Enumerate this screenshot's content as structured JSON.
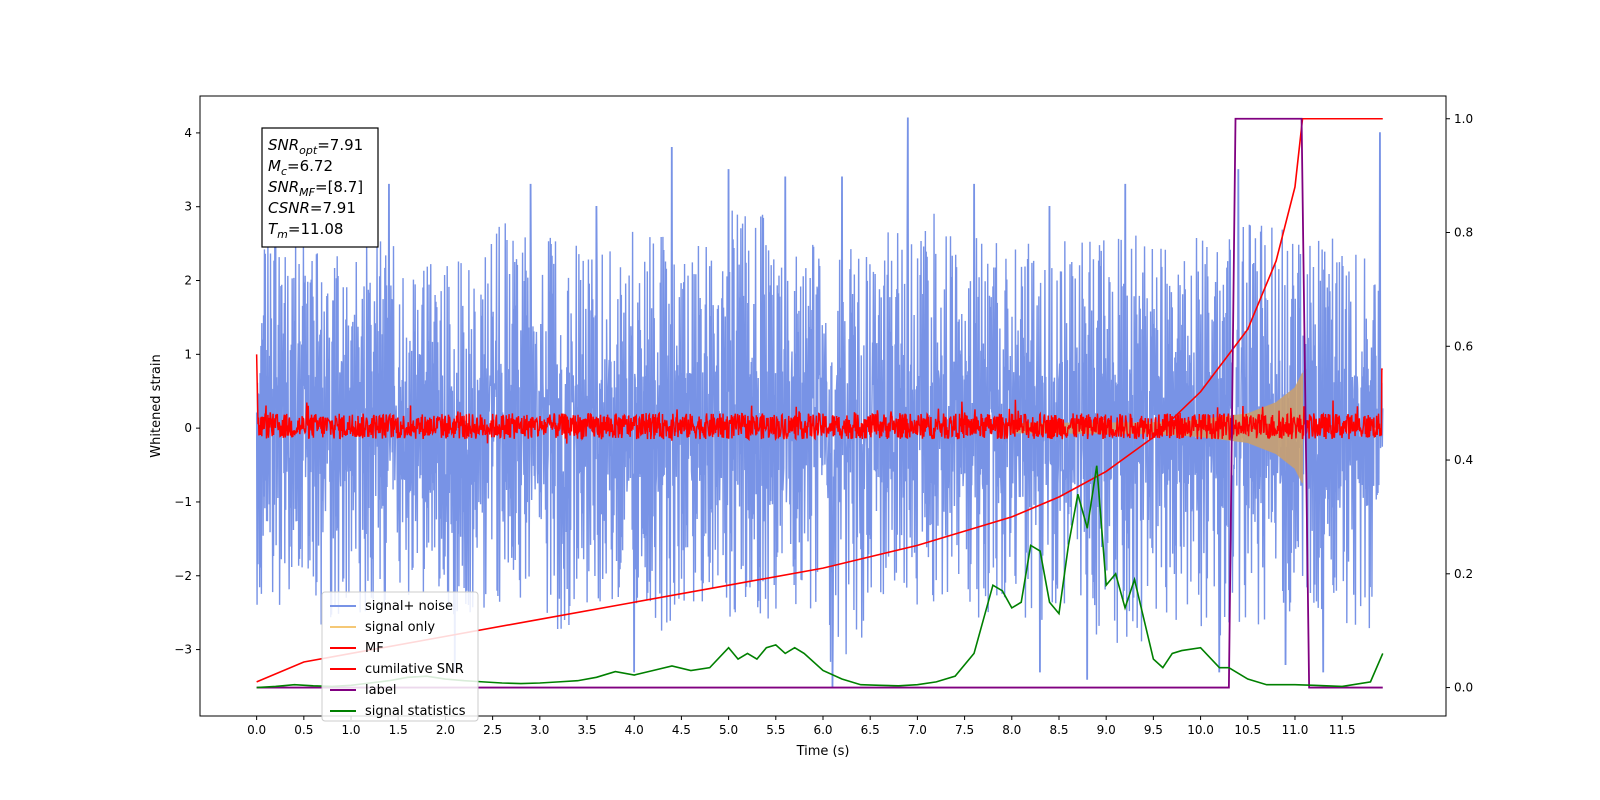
{
  "chart_data": {
    "type": "line",
    "xlabel": "Time (s)",
    "ylabel": "Whitened strain",
    "xlim": [
      -0.6,
      12.6
    ],
    "ylim": [
      -3.9,
      4.5
    ],
    "y2lim": [
      -0.05,
      1.04
    ],
    "x_ticks": [
      "0.0",
      "0.5",
      "1.0",
      "1.5",
      "2.0",
      "2.5",
      "3.0",
      "3.5",
      "4.0",
      "4.5",
      "5.0",
      "5.5",
      "6.0",
      "6.5",
      "7.0",
      "7.5",
      "8.0",
      "8.5",
      "9.0",
      "9.5",
      "10.0",
      "10.5",
      "11.0",
      "11.5"
    ],
    "y_ticks": [
      "−3",
      "−2",
      "−1",
      "0",
      "1",
      "2",
      "3",
      "4"
    ],
    "y2_ticks": [
      "0.0",
      "0.2",
      "0.4",
      "0.6",
      "0.8",
      "1.0"
    ],
    "legend_placement": "lower-left",
    "annotation": [
      {
        "base": "SNR",
        "sub": "opt",
        "value": "=7.91"
      },
      {
        "base": "M",
        "sub": "c",
        "value": "=6.72"
      },
      {
        "base": "SNR",
        "sub": "MF",
        "value": "=[8.7]"
      },
      {
        "base": "CSNR",
        "sub": "",
        "value": "=7.91"
      },
      {
        "base": "T",
        "sub": "m",
        "value": "=11.08"
      }
    ],
    "series": [
      {
        "name": "signal+ noise",
        "color": "#7893e6",
        "axis": "left",
        "envelope_hi": [
          2.7,
          2.4,
          2.6,
          2.3,
          2.5,
          2.8,
          2.6,
          2.4,
          2.7,
          2.5,
          3.0,
          2.6,
          2.5,
          2.7,
          3.0,
          2.6,
          2.5,
          2.6,
          2.7,
          2.5,
          2.6,
          2.8,
          2.6,
          2.4
        ],
        "envelope_lo": [
          -2.4,
          -2.7,
          -2.5,
          -2.3,
          -2.6,
          -2.4,
          -2.8,
          -2.5,
          -2.9,
          -2.4,
          -2.6,
          -2.5,
          -3.2,
          -2.3,
          -2.4,
          -2.6,
          -2.7,
          -2.8,
          -3.0,
          -2.6,
          -2.9,
          -2.7,
          -2.5,
          -2.8
        ],
        "spikes": [
          [
            0.2,
            3.1
          ],
          [
            1.4,
            3.3
          ],
          [
            2.9,
            3.3
          ],
          [
            3.6,
            3.0
          ],
          [
            4.4,
            3.8
          ],
          [
            5.0,
            3.5
          ],
          [
            5.6,
            3.4
          ],
          [
            6.2,
            3.4
          ],
          [
            6.9,
            4.2
          ],
          [
            7.6,
            3.3
          ],
          [
            8.4,
            3.0
          ],
          [
            9.2,
            3.3
          ],
          [
            10.4,
            3.5
          ],
          [
            11.9,
            4.0
          ],
          [
            2.1,
            -3.3
          ],
          [
            4.0,
            -3.3
          ],
          [
            6.1,
            -3.5
          ],
          [
            8.3,
            -3.3
          ],
          [
            8.8,
            -3.4
          ],
          [
            10.2,
            -3.3
          ],
          [
            10.9,
            -3.2
          ],
          [
            11.3,
            -3.3
          ]
        ]
      },
      {
        "name": "signal only",
        "color": "#f5c876",
        "axis": "left",
        "x": [
          0,
          9.5,
          10.0,
          10.5,
          10.8,
          11.0,
          11.08
        ],
        "amplitude": [
          0.02,
          0.08,
          0.12,
          0.2,
          0.35,
          0.55,
          0.75
        ]
      },
      {
        "name": "MF",
        "color": "#ff0000",
        "axis": "left",
        "band": [
          -0.15,
          0.2
        ],
        "spikes": [
          [
            0.0,
            1.0
          ],
          [
            11.93,
            0.8
          ]
        ]
      },
      {
        "name": "cumilative SNR",
        "color": "#ff0000",
        "axis": "right",
        "x": [
          0.0,
          0.5,
          1.0,
          2.0,
          3.0,
          4.0,
          5.0,
          6.0,
          7.0,
          8.0,
          8.5,
          9.0,
          9.5,
          10.0,
          10.5,
          10.8,
          11.0,
          11.08,
          11.93
        ],
        "y": [
          0.01,
          0.045,
          0.06,
          0.09,
          0.12,
          0.15,
          0.18,
          0.21,
          0.25,
          0.3,
          0.335,
          0.38,
          0.44,
          0.52,
          0.63,
          0.75,
          0.88,
          1.0,
          1.0
        ]
      },
      {
        "name": "label",
        "color": "#800080",
        "axis": "right",
        "x": [
          0.0,
          10.3,
          10.37,
          11.07,
          11.15,
          11.93
        ],
        "y": [
          0.0,
          0.0,
          1.0,
          1.0,
          0.0,
          0.0
        ]
      },
      {
        "name": "signal statistics",
        "color": "#008000",
        "axis": "right",
        "x": [
          0.0,
          0.2,
          0.4,
          0.6,
          0.8,
          1.0,
          1.2,
          1.4,
          1.6,
          1.8,
          2.0,
          2.2,
          2.4,
          2.6,
          2.8,
          3.0,
          3.2,
          3.4,
          3.6,
          3.8,
          4.0,
          4.2,
          4.4,
          4.6,
          4.8,
          5.0,
          5.1,
          5.2,
          5.3,
          5.4,
          5.5,
          5.6,
          5.7,
          5.8,
          6.0,
          6.2,
          6.4,
          6.6,
          6.8,
          7.0,
          7.2,
          7.4,
          7.6,
          7.7,
          7.8,
          7.9,
          8.0,
          8.1,
          8.2,
          8.3,
          8.4,
          8.5,
          8.6,
          8.7,
          8.8,
          8.9,
          9.0,
          9.1,
          9.2,
          9.3,
          9.4,
          9.5,
          9.6,
          9.7,
          9.8,
          10.0,
          10.2,
          10.3,
          10.5,
          10.7,
          11.0,
          11.2,
          11.5,
          11.8,
          11.93
        ],
        "y": [
          0.0,
          0.002,
          0.005,
          0.003,
          0.002,
          0.004,
          0.008,
          0.012,
          0.018,
          0.02,
          0.015,
          0.012,
          0.01,
          0.008,
          0.007,
          0.008,
          0.01,
          0.012,
          0.018,
          0.028,
          0.022,
          0.03,
          0.038,
          0.03,
          0.035,
          0.07,
          0.05,
          0.06,
          0.05,
          0.07,
          0.075,
          0.06,
          0.07,
          0.06,
          0.03,
          0.015,
          0.005,
          0.004,
          0.003,
          0.005,
          0.01,
          0.02,
          0.06,
          0.12,
          0.18,
          0.17,
          0.14,
          0.15,
          0.25,
          0.24,
          0.15,
          0.13,
          0.25,
          0.34,
          0.28,
          0.39,
          0.18,
          0.2,
          0.14,
          0.19,
          0.12,
          0.05,
          0.035,
          0.06,
          0.065,
          0.07,
          0.035,
          0.035,
          0.015,
          0.005,
          0.005,
          0.004,
          0.002,
          0.01,
          0.06
        ]
      }
    ]
  }
}
